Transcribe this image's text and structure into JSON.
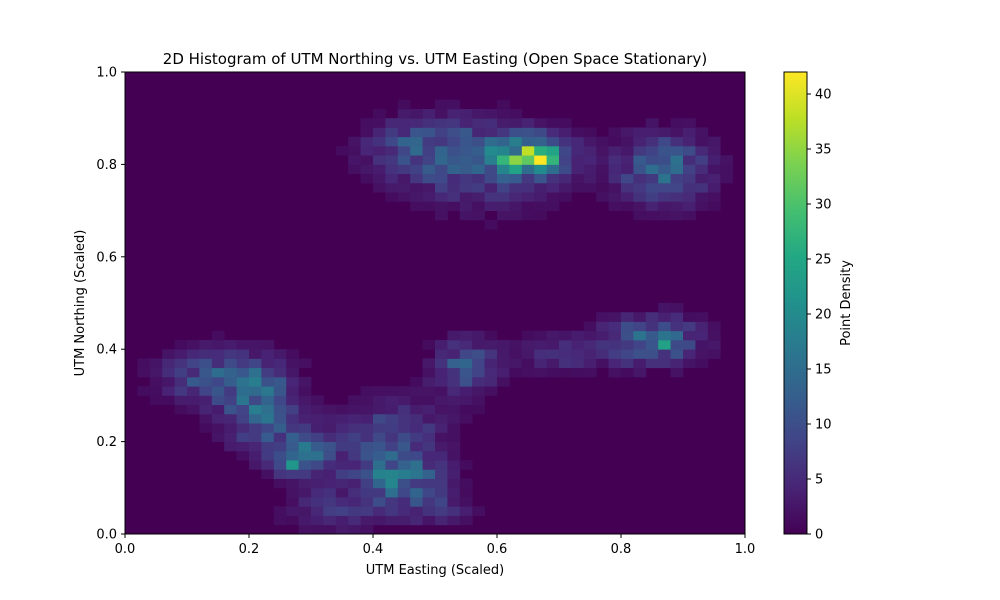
{
  "chart_data": {
    "type": "heatmap",
    "title": "2D Histogram of UTM Northing vs. UTM Easting (Open Space Stationary)",
    "xlabel": "UTM Easting (Scaled)",
    "ylabel": "UTM Northing (Scaled)",
    "xlim": [
      0,
      1
    ],
    "ylim": [
      0,
      1
    ],
    "x_ticks": [
      "0.0",
      "0.2",
      "0.4",
      "0.6",
      "0.8",
      "1.0"
    ],
    "y_ticks": [
      "0.0",
      "0.2",
      "0.4",
      "0.6",
      "0.8",
      "1.0"
    ],
    "colorbar": {
      "label": "Point Density",
      "range": [
        0,
        42
      ],
      "ticks": [
        "0",
        "5",
        "10",
        "15",
        "20",
        "25",
        "30",
        "35",
        "40"
      ],
      "colormap": "viridis"
    },
    "bins": [
      50,
      50
    ],
    "clusters": [
      {
        "x": 0.66,
        "y": 0.82,
        "sx": 0.035,
        "sy": 0.025,
        "peak": 28
      },
      {
        "x": 0.58,
        "y": 0.8,
        "sx": 0.09,
        "sy": 0.06,
        "peak": 10
      },
      {
        "x": 0.48,
        "y": 0.84,
        "sx": 0.06,
        "sy": 0.04,
        "peak": 8
      },
      {
        "x": 0.87,
        "y": 0.79,
        "sx": 0.05,
        "sy": 0.05,
        "peak": 13
      },
      {
        "x": 0.85,
        "y": 0.42,
        "sx": 0.05,
        "sy": 0.035,
        "peak": 15
      },
      {
        "x": 0.7,
        "y": 0.39,
        "sx": 0.05,
        "sy": 0.03,
        "peak": 5
      },
      {
        "x": 0.55,
        "y": 0.36,
        "sx": 0.035,
        "sy": 0.04,
        "peak": 11
      },
      {
        "x": 0.15,
        "y": 0.34,
        "sx": 0.06,
        "sy": 0.04,
        "peak": 11
      },
      {
        "x": 0.22,
        "y": 0.27,
        "sx": 0.04,
        "sy": 0.06,
        "peak": 12
      },
      {
        "x": 0.29,
        "y": 0.17,
        "sx": 0.035,
        "sy": 0.035,
        "peak": 15
      },
      {
        "x": 0.44,
        "y": 0.12,
        "sx": 0.05,
        "sy": 0.04,
        "peak": 14
      },
      {
        "x": 0.43,
        "y": 0.22,
        "sx": 0.06,
        "sy": 0.05,
        "peak": 8
      },
      {
        "x": 0.33,
        "y": 0.05,
        "sx": 0.05,
        "sy": 0.03,
        "peak": 6
      },
      {
        "x": 0.5,
        "y": 0.05,
        "sx": 0.04,
        "sy": 0.02,
        "peak": 6
      }
    ],
    "peak_bins": [
      {
        "x": 0.67,
        "y": 0.81,
        "value": 42
      },
      {
        "x": 0.65,
        "y": 0.83,
        "value": 38
      },
      {
        "x": 0.87,
        "y": 0.41,
        "value": 24
      },
      {
        "x": 0.27,
        "y": 0.15,
        "value": 22
      }
    ]
  }
}
